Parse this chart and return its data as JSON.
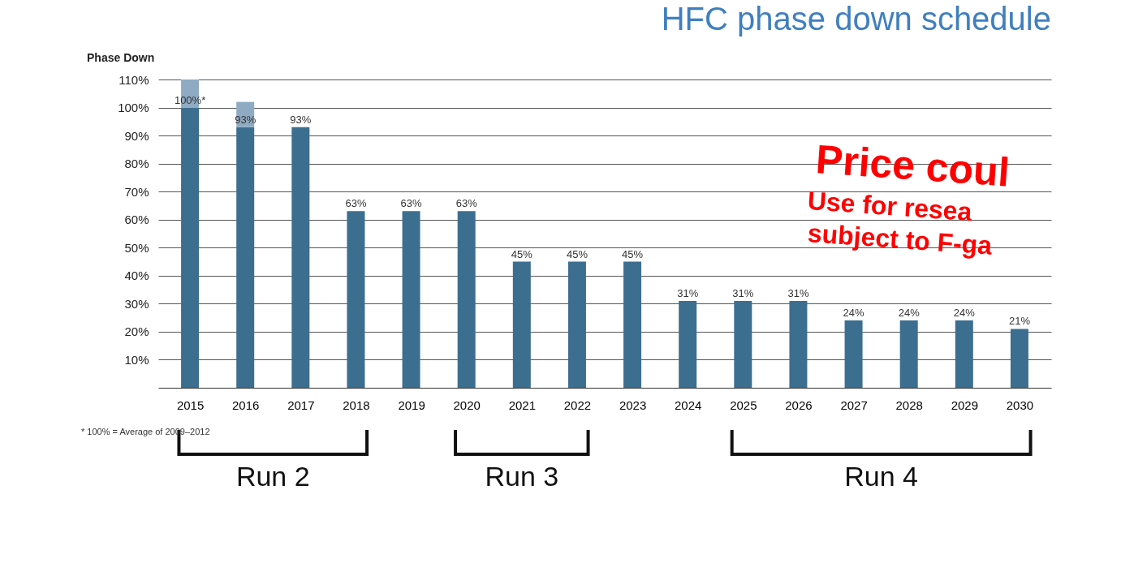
{
  "chart_data": {
    "type": "bar",
    "title": "HFC phase down schedule",
    "ylabel": "Phase Down",
    "categories": [
      "2015",
      "2016",
      "2017",
      "2018",
      "2019",
      "2020",
      "2021",
      "2022",
      "2023",
      "2024",
      "2025",
      "2026",
      "2027",
      "2028",
      "2029",
      "2030"
    ],
    "stacked": true,
    "series": [
      {
        "color": "#3c6e8f",
        "values": [
          100,
          93,
          93,
          63,
          63,
          63,
          45,
          45,
          45,
          31,
          31,
          31,
          24,
          24,
          24,
          21
        ],
        "value_labels": [
          "100%*",
          "93%",
          "93%",
          "63%",
          "63%",
          "63%",
          "45%",
          "45%",
          "45%",
          "31%",
          "31%",
          "31%",
          "24%",
          "24%",
          "24%",
          "21%"
        ]
      },
      {
        "color": "#8fabc4",
        "values": [
          10,
          9,
          null,
          null,
          null,
          null,
          null,
          null,
          null,
          null,
          null,
          null,
          null,
          null,
          null,
          null
        ]
      }
    ],
    "ylim": [
      0,
      110
    ],
    "yticks": [
      {
        "value": 10,
        "label": "10%"
      },
      {
        "value": 20,
        "label": "20%"
      },
      {
        "value": 30,
        "label": "30%"
      },
      {
        "value": 40,
        "label": "40%"
      },
      {
        "value": 50,
        "label": "50%"
      },
      {
        "value": 60,
        "label": "60%"
      },
      {
        "value": 70,
        "label": "70%"
      },
      {
        "value": 80,
        "label": "80%"
      },
      {
        "value": 90,
        "label": "90%"
      },
      {
        "value": 100,
        "label": "100%"
      },
      {
        "value": 110,
        "label": "110%"
      }
    ],
    "grid": "y",
    "annotations": [
      "* 100% = Average of 2009–2012",
      "Price coul",
      "Use  for resea",
      "subject to F-ga",
      "Run 2",
      "Run 3",
      "Run 4"
    ]
  }
}
